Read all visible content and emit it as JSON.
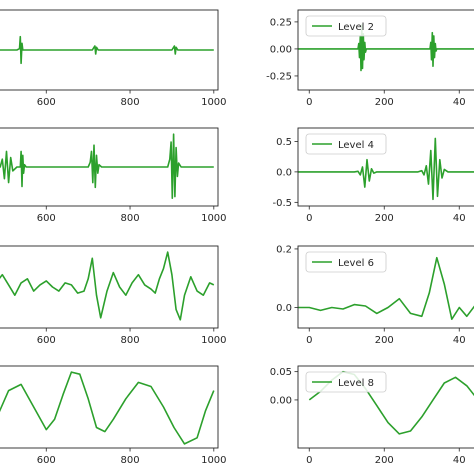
{
  "chart_data": [
    {
      "type": "line",
      "panel": "left-1",
      "legend": "",
      "x_ticks": [
        "600",
        "800",
        "1000"
      ],
      "y_ticks": [],
      "xlim": [
        480,
        1010
      ],
      "ylim": [
        -0.3,
        0.3
      ],
      "series": [
        {
          "color": "#2ca02c",
          "x": [
            480,
            530,
            536,
            538,
            540,
            542,
            544,
            550,
            710,
            714,
            716,
            718,
            720,
            724,
            900,
            904,
            906,
            908,
            910,
            914,
            1000
          ],
          "y": [
            0,
            0,
            0.01,
            0.1,
            -0.1,
            0.05,
            0,
            0,
            0,
            0.02,
            0.03,
            -0.03,
            0.02,
            0,
            0,
            0.02,
            0.03,
            -0.03,
            0.02,
            0,
            0
          ]
        }
      ]
    },
    {
      "type": "line",
      "panel": "right-1",
      "legend": "Level 2",
      "legend_position": "top-left",
      "x_ticks": [
        "0",
        "200",
        "40"
      ],
      "y_ticks": [
        "0.25",
        "0.00",
        "-0.25"
      ],
      "y_tick_values": [
        0.25,
        0,
        -0.25
      ],
      "xlim": [
        -30,
        450
      ],
      "ylim": [
        -0.38,
        0.36
      ],
      "series": [
        {
          "color": "#2ca02c",
          "x": [
            -30,
            0,
            50,
            100,
            130,
            132,
            134,
            136,
            138,
            140,
            142,
            144,
            146,
            148,
            150,
            152,
            170,
            300,
            322,
            324,
            326,
            328,
            330,
            332,
            334,
            336,
            338,
            340,
            360,
            450
          ],
          "y": [
            0,
            0,
            0,
            0,
            0,
            0.05,
            -0.08,
            0.12,
            -0.2,
            0.22,
            -0.18,
            0.14,
            -0.1,
            0.06,
            -0.03,
            0,
            0,
            0,
            0,
            0.06,
            -0.1,
            0.15,
            -0.16,
            0.12,
            -0.08,
            0.05,
            -0.02,
            0,
            0,
            0
          ]
        }
      ]
    },
    {
      "type": "line",
      "panel": "left-2",
      "legend": "",
      "x_ticks": [
        "600",
        "800",
        "1000"
      ],
      "y_ticks": [],
      "xlim": [
        480,
        1010
      ],
      "ylim": [
        -0.5,
        0.5
      ],
      "series": [
        {
          "color": "#2ca02c",
          "x": [
            480,
            490,
            495,
            500,
            505,
            510,
            515,
            520,
            530,
            538,
            540,
            542,
            544,
            546,
            548,
            552,
            600,
            650,
            700,
            705,
            708,
            711,
            714,
            717,
            720,
            723,
            726,
            732,
            800,
            850,
            890,
            895,
            898,
            901,
            904,
            907,
            910,
            913,
            916,
            922,
            950,
            1000
          ],
          "y": [
            0,
            0,
            0.1,
            -0.15,
            0.2,
            -0.2,
            0.12,
            -0.05,
            0,
            0,
            0.2,
            -0.25,
            0.15,
            -0.08,
            0.03,
            0,
            0,
            0,
            0,
            0.06,
            0.2,
            -0.2,
            0.28,
            -0.26,
            0.15,
            -0.08,
            0.03,
            0,
            0,
            0,
            0,
            0.1,
            0.32,
            -0.4,
            0.42,
            -0.38,
            0.25,
            -0.12,
            0.05,
            0,
            0,
            0
          ]
        }
      ]
    },
    {
      "type": "line",
      "panel": "right-2",
      "legend": "Level 4",
      "legend_position": "top-left",
      "x_ticks": [
        "0",
        "200",
        "40"
      ],
      "y_ticks": [
        "0.5",
        "0.0",
        "-0.5"
      ],
      "y_tick_values": [
        0.5,
        0,
        -0.5
      ],
      "xlim": [
        -30,
        450
      ],
      "ylim": [
        -0.56,
        0.72
      ],
      "series": [
        {
          "color": "#2ca02c",
          "x": [
            -30,
            50,
            100,
            120,
            130,
            136,
            142,
            148,
            154,
            160,
            166,
            172,
            180,
            200,
            250,
            290,
            300,
            306,
            312,
            318,
            324,
            330,
            336,
            342,
            348,
            354,
            360,
            370,
            450
          ],
          "y": [
            0,
            0,
            0,
            0,
            0.01,
            -0.05,
            0.08,
            -0.25,
            0.2,
            -0.15,
            0.05,
            -0.02,
            0,
            0,
            0,
            0,
            0.02,
            -0.05,
            0.1,
            -0.2,
            0.35,
            -0.45,
            0.55,
            -0.4,
            0.2,
            -0.1,
            0.04,
            0,
            0
          ]
        }
      ]
    },
    {
      "type": "line",
      "panel": "left-3",
      "legend": "",
      "x_ticks": [
        "600",
        "800",
        "1000"
      ],
      "y_ticks": [],
      "xlim": [
        480,
        1010
      ],
      "ylim": [
        -1.0,
        1.0
      ],
      "series": [
        {
          "color": "#2ca02c",
          "x": [
            480,
            495,
            510,
            525,
            540,
            555,
            570,
            585,
            600,
            615,
            630,
            645,
            660,
            675,
            690,
            700,
            710,
            720,
            730,
            745,
            760,
            775,
            790,
            805,
            820,
            835,
            850,
            860,
            870,
            880,
            890,
            900,
            910,
            920,
            930,
            945,
            960,
            975,
            990,
            1000
          ],
          "y": [
            0.1,
            0.3,
            0.05,
            -0.2,
            0.1,
            0.2,
            -0.1,
            0.05,
            0.15,
            0.0,
            -0.1,
            0.1,
            0.05,
            -0.15,
            -0.1,
            0.2,
            0.7,
            -0.2,
            -0.75,
            -0.1,
            0.35,
            0.0,
            -0.2,
            0.1,
            0.3,
            0.05,
            -0.05,
            -0.15,
            0.2,
            0.45,
            0.85,
            0.3,
            -0.55,
            -0.8,
            -0.2,
            0.25,
            -0.1,
            -0.2,
            0.1,
            0.05
          ]
        }
      ]
    },
    {
      "type": "line",
      "panel": "right-3",
      "legend": "Level 6",
      "legend_position": "top-left",
      "x_ticks": [
        "0",
        "200",
        "40"
      ],
      "y_ticks": [
        "0.2",
        "0.0"
      ],
      "y_tick_values": [
        0.2,
        0
      ],
      "xlim": [
        -30,
        450
      ],
      "ylim": [
        -0.07,
        0.21
      ],
      "series": [
        {
          "color": "#2ca02c",
          "x": [
            -30,
            0,
            30,
            60,
            90,
            120,
            150,
            180,
            210,
            240,
            270,
            300,
            320,
            340,
            360,
            380,
            400,
            420,
            450
          ],
          "y": [
            0.0,
            0.0,
            -0.01,
            0.0,
            -0.005,
            0.01,
            0.005,
            -0.02,
            0.0,
            0.03,
            -0.02,
            -0.03,
            0.05,
            0.17,
            0.08,
            -0.04,
            0.0,
            -0.03,
            0.02
          ]
        }
      ]
    },
    {
      "type": "line",
      "panel": "left-4",
      "legend": "",
      "x_ticks": [
        "600",
        "800",
        "1000"
      ],
      "y_ticks": [],
      "xlim": [
        480,
        1010
      ],
      "ylim": [
        -1.0,
        1.0
      ],
      "series": [
        {
          "color": "#2ca02c",
          "x": [
            480,
            510,
            540,
            570,
            600,
            620,
            640,
            660,
            680,
            700,
            720,
            740,
            760,
            790,
            820,
            850,
            880,
            905,
            930,
            960,
            980,
            1000
          ],
          "y": [
            -0.3,
            0.4,
            0.55,
            0.0,
            -0.55,
            -0.3,
            0.3,
            0.85,
            0.8,
            0.2,
            -0.5,
            -0.6,
            -0.3,
            0.2,
            0.6,
            0.5,
            0.0,
            -0.5,
            -0.9,
            -0.75,
            -0.1,
            0.4
          ]
        }
      ]
    },
    {
      "type": "line",
      "panel": "right-4",
      "legend": "Level 8",
      "legend_position": "top-left",
      "x_ticks": [
        "0",
        "200",
        "40"
      ],
      "y_ticks": [
        "0.05",
        "0.00"
      ],
      "y_tick_values": [
        0.05,
        0
      ],
      "xlim": [
        -30,
        450
      ],
      "ylim": [
        -0.085,
        0.06
      ],
      "series": [
        {
          "color": "#2ca02c",
          "x": [
            0,
            30,
            60,
            90,
            120,
            150,
            180,
            210,
            240,
            270,
            300,
            330,
            360,
            390,
            420,
            450
          ],
          "y": [
            0.0,
            0.015,
            0.035,
            0.05,
            0.045,
            0.02,
            -0.01,
            -0.04,
            -0.06,
            -0.055,
            -0.03,
            0.0,
            0.03,
            0.04,
            0.025,
            0.0
          ]
        }
      ]
    }
  ]
}
